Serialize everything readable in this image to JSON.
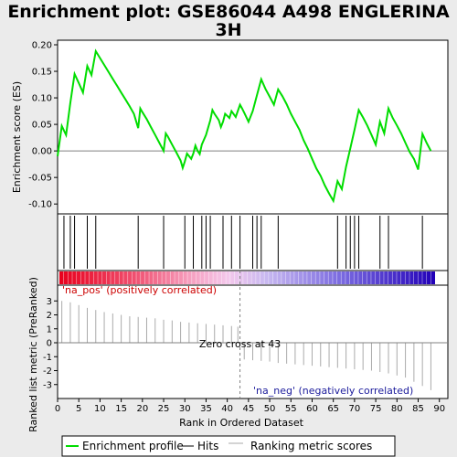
{
  "chart_data": {
    "type": "line",
    "title_lines": [
      "Enrichment plot: GSE86044 A498 ENGLERINA",
      "3H"
    ],
    "xlabel": "Rank in Ordered Dataset",
    "ylabel_top": "Enrichment score (ES)",
    "ylabel_bottom": "Ranked list metric (PreRanked)",
    "xlim": [
      0,
      92
    ],
    "x_ticks": [
      "0",
      "5",
      "10",
      "15",
      "20",
      "25",
      "30",
      "35",
      "40",
      "45",
      "50",
      "55",
      "60",
      "65",
      "70",
      "75",
      "80",
      "85",
      "90"
    ],
    "es_ylim": [
      -0.11,
      0.2
    ],
    "es_ticks": [
      "0.20",
      "0.15",
      "0.10",
      "0.05",
      "0.00",
      "-0.05",
      "-0.10"
    ],
    "metric_ylim": [
      -4,
      4
    ],
    "metric_ticks": [
      "3",
      "2",
      "1",
      "0",
      "-1",
      "-2",
      "-3"
    ],
    "es_points": [
      [
        0,
        -0.01
      ],
      [
        1,
        0.047
      ],
      [
        2,
        0.03
      ],
      [
        3,
        0.09
      ],
      [
        4,
        0.145
      ],
      [
        5,
        0.128
      ],
      [
        6,
        0.11
      ],
      [
        7,
        0.16
      ],
      [
        8,
        0.143
      ],
      [
        9,
        0.188
      ],
      [
        10,
        0.175
      ],
      [
        11,
        0.162
      ],
      [
        12,
        0.149
      ],
      [
        13,
        0.136
      ],
      [
        14,
        0.123
      ],
      [
        15,
        0.11
      ],
      [
        16,
        0.097
      ],
      [
        17,
        0.084
      ],
      [
        18,
        0.07
      ],
      [
        19,
        0.043
      ],
      [
        19.5,
        0.08
      ],
      [
        20,
        0.073
      ],
      [
        21,
        0.06
      ],
      [
        22,
        0.045
      ],
      [
        23,
        0.03
      ],
      [
        24,
        0.015
      ],
      [
        25,
        0.0
      ],
      [
        25.5,
        0.033
      ],
      [
        26,
        0.027
      ],
      [
        27,
        0.012
      ],
      [
        28,
        -0.003
      ],
      [
        29,
        -0.018
      ],
      [
        29.5,
        -0.032
      ],
      [
        30,
        -0.02
      ],
      [
        30.5,
        -0.005
      ],
      [
        31,
        -0.01
      ],
      [
        31.5,
        -0.015
      ],
      [
        32,
        -0.005
      ],
      [
        32.5,
        0.01
      ],
      [
        33,
        0.0
      ],
      [
        33.5,
        -0.006
      ],
      [
        34,
        0.012
      ],
      [
        35,
        0.03
      ],
      [
        36,
        0.058
      ],
      [
        36.5,
        0.077
      ],
      [
        37,
        0.07
      ],
      [
        38,
        0.058
      ],
      [
        38.5,
        0.045
      ],
      [
        39,
        0.055
      ],
      [
        39.5,
        0.07
      ],
      [
        40,
        0.066
      ],
      [
        40.5,
        0.062
      ],
      [
        41,
        0.075
      ],
      [
        42,
        0.064
      ],
      [
        43,
        0.087
      ],
      [
        43.5,
        0.08
      ],
      [
        44,
        0.072
      ],
      [
        45,
        0.055
      ],
      [
        46,
        0.075
      ],
      [
        47,
        0.105
      ],
      [
        48,
        0.135
      ],
      [
        49,
        0.117
      ],
      [
        50,
        0.102
      ],
      [
        51,
        0.087
      ],
      [
        52,
        0.116
      ],
      [
        53,
        0.103
      ],
      [
        54,
        0.088
      ],
      [
        55,
        0.07
      ],
      [
        56,
        0.055
      ],
      [
        57,
        0.04
      ],
      [
        58,
        0.02
      ],
      [
        59,
        0.004
      ],
      [
        60,
        -0.015
      ],
      [
        61,
        -0.033
      ],
      [
        62,
        -0.047
      ],
      [
        63,
        -0.065
      ],
      [
        64,
        -0.08
      ],
      [
        65,
        -0.094
      ],
      [
        66,
        -0.057
      ],
      [
        67,
        -0.072
      ],
      [
        68,
        -0.03
      ],
      [
        69,
        0.005
      ],
      [
        70,
        0.04
      ],
      [
        71,
        0.077
      ],
      [
        72,
        0.063
      ],
      [
        73,
        0.048
      ],
      [
        74,
        0.03
      ],
      [
        75,
        0.012
      ],
      [
        76,
        0.055
      ],
      [
        77,
        0.033
      ],
      [
        78,
        0.08
      ],
      [
        79,
        0.062
      ],
      [
        80,
        0.048
      ],
      [
        81,
        0.033
      ],
      [
        82,
        0.015
      ],
      [
        83,
        -0.002
      ],
      [
        84,
        -0.015
      ],
      [
        85,
        -0.035
      ],
      [
        86,
        0.032
      ],
      [
        87,
        0.015
      ],
      [
        88,
        0.0
      ]
    ],
    "hits": [
      1.5,
      3,
      4,
      7,
      9,
      19,
      25,
      30,
      32,
      34,
      35,
      36,
      39,
      41,
      43,
      46,
      47,
      48,
      52,
      66,
      68,
      69,
      70,
      71,
      76,
      78,
      86
    ],
    "metric_points": [
      [
        1,
        3.0
      ],
      [
        3,
        2.9
      ],
      [
        5,
        2.7
      ],
      [
        7,
        2.5
      ],
      [
        9,
        2.35
      ],
      [
        11,
        2.2
      ],
      [
        13,
        2.1
      ],
      [
        15,
        2.0
      ],
      [
        17,
        1.9
      ],
      [
        19,
        1.85
      ],
      [
        21,
        1.8
      ],
      [
        23,
        1.75
      ],
      [
        25,
        1.65
      ],
      [
        27,
        1.6
      ],
      [
        29,
        1.5
      ],
      [
        31,
        1.45
      ],
      [
        33,
        1.4
      ],
      [
        35,
        1.35
      ],
      [
        37,
        1.3
      ],
      [
        39,
        1.25
      ],
      [
        41,
        1.2
      ],
      [
        42.5,
        1.15
      ],
      [
        44,
        -1.2
      ],
      [
        46,
        -1.25
      ],
      [
        48,
        -1.3
      ],
      [
        50,
        -1.35
      ],
      [
        52,
        -1.45
      ],
      [
        54,
        -1.5
      ],
      [
        56,
        -1.55
      ],
      [
        58,
        -1.6
      ],
      [
        60,
        -1.65
      ],
      [
        62,
        -1.7
      ],
      [
        64,
        -1.75
      ],
      [
        66,
        -1.8
      ],
      [
        68,
        -1.85
      ],
      [
        70,
        -1.9
      ],
      [
        72,
        -1.95
      ],
      [
        74,
        -2.0
      ],
      [
        76,
        -2.1
      ],
      [
        78,
        -2.2
      ],
      [
        80,
        -2.35
      ],
      [
        82,
        -2.5
      ],
      [
        84,
        -2.8
      ],
      [
        86,
        -3.1
      ],
      [
        88,
        -3.4
      ]
    ],
    "zero_cross_rank": 43,
    "zero_cross_label": "Zero cross at 43",
    "pos_label": "'na_pos' (positively correlated)",
    "neg_label": "'na_neg' (negatively correlated)",
    "legend": [
      "Enrichment profile",
      "Hits",
      "Ranking metric scores"
    ],
    "colors": {
      "profile": "#00dd00",
      "hits": "#000000",
      "metric": "#aaaaaa",
      "pos_label": "#cc0000",
      "neg_label": "#1c1c9c",
      "zero_line": "#808080",
      "panel_bg": "#ffffff",
      "page_bg": "#ebebeb"
    }
  }
}
